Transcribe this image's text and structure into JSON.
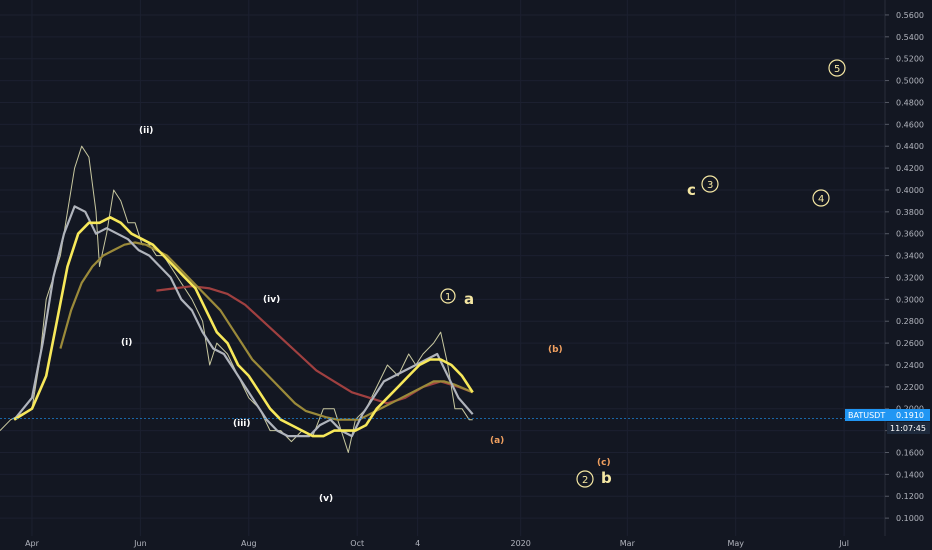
{
  "chart_data": {
    "type": "line",
    "symbol": "BATUSDT",
    "last_price": "0.1910",
    "countdown": "11:07:45",
    "ylim": [
      0.08,
      0.57
    ],
    "y_ticks": [
      "0.5600",
      "0.5400",
      "0.5200",
      "0.5000",
      "0.4800",
      "0.4600",
      "0.4400",
      "0.4200",
      "0.4000",
      "0.3800",
      "0.3600",
      "0.3400",
      "0.3200",
      "0.3000",
      "0.2800",
      "0.2600",
      "0.2400",
      "0.2200",
      "0.2000",
      "0.1800",
      "0.1600",
      "0.1400",
      "0.1200",
      "0.1000"
    ],
    "x_ticks": [
      {
        "label": "Apr",
        "day": 0
      },
      {
        "label": "Jun",
        "day": 61
      },
      {
        "label": "Aug",
        "day": 122
      },
      {
        "label": "Oct",
        "day": 183
      },
      {
        "label": "4",
        "day": 217
      },
      {
        "label": "2020",
        "day": 275
      },
      {
        "label": "Mar",
        "day": 335
      },
      {
        "label": "May",
        "day": 396
      },
      {
        "label": "Jul",
        "day": 457
      }
    ],
    "xlim": [
      -18,
      480
    ],
    "price": [
      [
        -18,
        0.18
      ],
      [
        -12,
        0.19
      ],
      [
        -6,
        0.195
      ],
      [
        0,
        0.2
      ],
      [
        4,
        0.24
      ],
      [
        8,
        0.3
      ],
      [
        12,
        0.32
      ],
      [
        16,
        0.34
      ],
      [
        20,
        0.38
      ],
      [
        24,
        0.42
      ],
      [
        28,
        0.44
      ],
      [
        32,
        0.43
      ],
      [
        36,
        0.38
      ],
      [
        38,
        0.33
      ],
      [
        42,
        0.36
      ],
      [
        46,
        0.4
      ],
      [
        50,
        0.39
      ],
      [
        54,
        0.37
      ],
      [
        58,
        0.37
      ],
      [
        62,
        0.35
      ],
      [
        66,
        0.35
      ],
      [
        70,
        0.34
      ],
      [
        74,
        0.34
      ],
      [
        78,
        0.33
      ],
      [
        82,
        0.32
      ],
      [
        86,
        0.31
      ],
      [
        90,
        0.3
      ],
      [
        96,
        0.28
      ],
      [
        100,
        0.24
      ],
      [
        104,
        0.26
      ],
      [
        110,
        0.25
      ],
      [
        116,
        0.23
      ],
      [
        122,
        0.21
      ],
      [
        128,
        0.2
      ],
      [
        134,
        0.18
      ],
      [
        140,
        0.18
      ],
      [
        146,
        0.17
      ],
      [
        152,
        0.18
      ],
      [
        158,
        0.175
      ],
      [
        164,
        0.2
      ],
      [
        170,
        0.2
      ],
      [
        174,
        0.18
      ],
      [
        178,
        0.16
      ],
      [
        182,
        0.19
      ],
      [
        188,
        0.2
      ],
      [
        194,
        0.22
      ],
      [
        200,
        0.24
      ],
      [
        206,
        0.23
      ],
      [
        212,
        0.25
      ],
      [
        216,
        0.24
      ],
      [
        220,
        0.25
      ],
      [
        226,
        0.26
      ],
      [
        230,
        0.27
      ],
      [
        234,
        0.24
      ],
      [
        238,
        0.2
      ],
      [
        242,
        0.2
      ],
      [
        246,
        0.19
      ],
      [
        248,
        0.19
      ]
    ],
    "ma_yellow": [
      [
        -10,
        0.19
      ],
      [
        0,
        0.2
      ],
      [
        8,
        0.23
      ],
      [
        14,
        0.28
      ],
      [
        20,
        0.33
      ],
      [
        26,
        0.36
      ],
      [
        32,
        0.37
      ],
      [
        38,
        0.37
      ],
      [
        44,
        0.375
      ],
      [
        50,
        0.37
      ],
      [
        56,
        0.36
      ],
      [
        62,
        0.355
      ],
      [
        68,
        0.35
      ],
      [
        74,
        0.34
      ],
      [
        80,
        0.33
      ],
      [
        86,
        0.32
      ],
      [
        92,
        0.31
      ],
      [
        98,
        0.29
      ],
      [
        104,
        0.27
      ],
      [
        110,
        0.26
      ],
      [
        116,
        0.24
      ],
      [
        122,
        0.23
      ],
      [
        128,
        0.215
      ],
      [
        134,
        0.2
      ],
      [
        140,
        0.19
      ],
      [
        146,
        0.185
      ],
      [
        152,
        0.18
      ],
      [
        158,
        0.175
      ],
      [
        164,
        0.175
      ],
      [
        170,
        0.18
      ],
      [
        176,
        0.18
      ],
      [
        182,
        0.18
      ],
      [
        188,
        0.185
      ],
      [
        194,
        0.2
      ],
      [
        200,
        0.21
      ],
      [
        206,
        0.22
      ],
      [
        212,
        0.23
      ],
      [
        218,
        0.24
      ],
      [
        224,
        0.245
      ],
      [
        230,
        0.245
      ],
      [
        236,
        0.24
      ],
      [
        242,
        0.23
      ],
      [
        248,
        0.215
      ]
    ],
    "ma_gray": [
      [
        -10,
        0.19
      ],
      [
        0,
        0.21
      ],
      [
        6,
        0.26
      ],
      [
        12,
        0.32
      ],
      [
        18,
        0.36
      ],
      [
        24,
        0.385
      ],
      [
        30,
        0.38
      ],
      [
        36,
        0.36
      ],
      [
        42,
        0.365
      ],
      [
        48,
        0.36
      ],
      [
        54,
        0.355
      ],
      [
        60,
        0.345
      ],
      [
        66,
        0.34
      ],
      [
        72,
        0.33
      ],
      [
        78,
        0.32
      ],
      [
        84,
        0.3
      ],
      [
        90,
        0.29
      ],
      [
        96,
        0.27
      ],
      [
        102,
        0.255
      ],
      [
        108,
        0.25
      ],
      [
        114,
        0.235
      ],
      [
        120,
        0.22
      ],
      [
        126,
        0.205
      ],
      [
        132,
        0.19
      ],
      [
        138,
        0.18
      ],
      [
        144,
        0.175
      ],
      [
        150,
        0.175
      ],
      [
        156,
        0.175
      ],
      [
        162,
        0.185
      ],
      [
        168,
        0.19
      ],
      [
        174,
        0.18
      ],
      [
        180,
        0.175
      ],
      [
        186,
        0.195
      ],
      [
        192,
        0.21
      ],
      [
        198,
        0.225
      ],
      [
        204,
        0.23
      ],
      [
        210,
        0.235
      ],
      [
        216,
        0.24
      ],
      [
        222,
        0.245
      ],
      [
        228,
        0.25
      ],
      [
        234,
        0.23
      ],
      [
        240,
        0.21
      ],
      [
        248,
        0.195
      ]
    ],
    "ma_olive": [
      [
        16,
        0.255
      ],
      [
        22,
        0.29
      ],
      [
        28,
        0.315
      ],
      [
        34,
        0.33
      ],
      [
        40,
        0.34
      ],
      [
        46,
        0.345
      ],
      [
        52,
        0.35
      ],
      [
        58,
        0.352
      ],
      [
        64,
        0.35
      ],
      [
        70,
        0.345
      ],
      [
        76,
        0.34
      ],
      [
        82,
        0.33
      ],
      [
        88,
        0.32
      ],
      [
        94,
        0.31
      ],
      [
        100,
        0.3
      ],
      [
        106,
        0.29
      ],
      [
        112,
        0.275
      ],
      [
        118,
        0.26
      ],
      [
        124,
        0.245
      ],
      [
        130,
        0.235
      ],
      [
        136,
        0.225
      ],
      [
        142,
        0.215
      ],
      [
        148,
        0.205
      ],
      [
        154,
        0.198
      ],
      [
        160,
        0.195
      ],
      [
        166,
        0.192
      ],
      [
        172,
        0.19
      ],
      [
        178,
        0.19
      ],
      [
        184,
        0.19
      ],
      [
        190,
        0.195
      ],
      [
        196,
        0.2
      ],
      [
        202,
        0.205
      ],
      [
        208,
        0.21
      ],
      [
        214,
        0.215
      ],
      [
        220,
        0.22
      ],
      [
        226,
        0.225
      ],
      [
        232,
        0.225
      ],
      [
        238,
        0.222
      ],
      [
        248,
        0.215
      ]
    ],
    "ma_red": [
      [
        70,
        0.308
      ],
      [
        80,
        0.31
      ],
      [
        90,
        0.312
      ],
      [
        100,
        0.31
      ],
      [
        110,
        0.305
      ],
      [
        120,
        0.295
      ],
      [
        130,
        0.28
      ],
      [
        140,
        0.265
      ],
      [
        150,
        0.25
      ],
      [
        160,
        0.235
      ],
      [
        170,
        0.225
      ],
      [
        180,
        0.215
      ],
      [
        190,
        0.21
      ],
      [
        200,
        0.205
      ],
      [
        210,
        0.21
      ],
      [
        220,
        0.22
      ],
      [
        230,
        0.225
      ],
      [
        240,
        0.22
      ],
      [
        248,
        0.215
      ]
    ],
    "annotations": {
      "wave_i": "(i)",
      "wave_ii": "(ii)",
      "wave_iii": "(iii)",
      "wave_iv": "(iv)",
      "wave_v": "(v)",
      "wave_a_small": "(a)",
      "wave_b_small": "(b)",
      "wave_c_small": "(c)",
      "letter_a": "a",
      "letter_b": "b",
      "letter_c": "c",
      "circle_1": "1",
      "circle_2": "2",
      "circle_3": "3",
      "circle_4": "4",
      "circle_5": "5"
    },
    "colors": {
      "price": "#c8c8a0",
      "ma_yellow": "#f7e85a",
      "ma_gray": "#b0b4bc",
      "ma_olive": "#9b8a3a",
      "ma_red": "#a04040",
      "price_tag": "#2196f3"
    }
  }
}
